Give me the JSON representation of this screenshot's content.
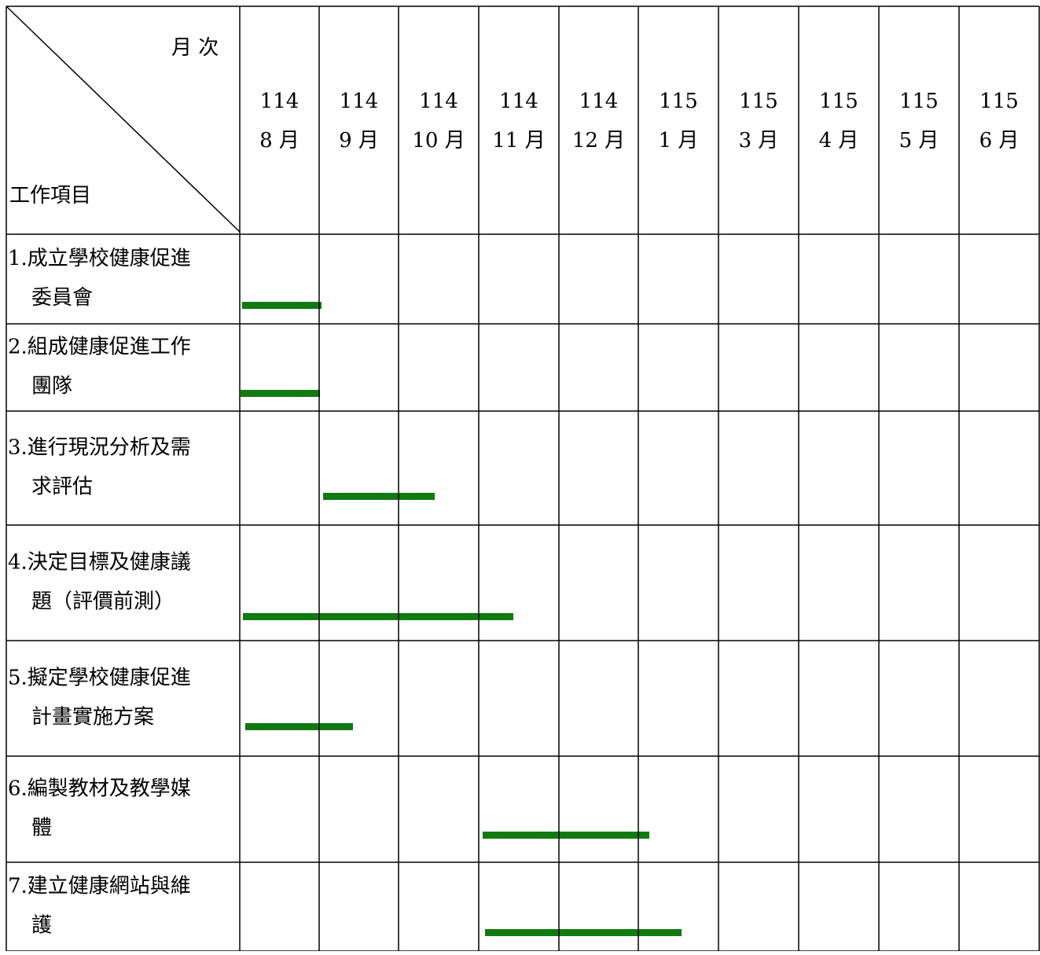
{
  "header": {
    "month_label": "月 次",
    "item_label": "工作項目"
  },
  "months": [
    {
      "year": "114",
      "month": "8 月"
    },
    {
      "year": "114",
      "month": "9 月"
    },
    {
      "year": "114",
      "month": "10 月"
    },
    {
      "year": "114",
      "month": "11 月"
    },
    {
      "year": "114",
      "month": "12 月"
    },
    {
      "year": "115",
      "month": "1 月"
    },
    {
      "year": "115",
      "month": "3 月"
    },
    {
      "year": "115",
      "month": "4 月"
    },
    {
      "year": "115",
      "month": "5 月"
    },
    {
      "year": "115",
      "month": "6 月"
    }
  ],
  "rows": [
    {
      "label": [
        "1.成立學校健康促進",
        "委員會"
      ]
    },
    {
      "label": [
        "2.組成健康促進工作",
        "團隊"
      ]
    },
    {
      "label": [
        "3.進行現況分析及需",
        "求評估"
      ]
    },
    {
      "label": [
        "4.決定目標及健康議",
        "題（評價前測）"
      ]
    },
    {
      "label": [
        "5.擬定學校健康促進",
        "計畫實施方案"
      ]
    },
    {
      "label": [
        "6.編製教材及教學媒",
        "體"
      ]
    },
    {
      "label": [
        "7.建立健康網站與維",
        "護"
      ]
    }
  ]
}
